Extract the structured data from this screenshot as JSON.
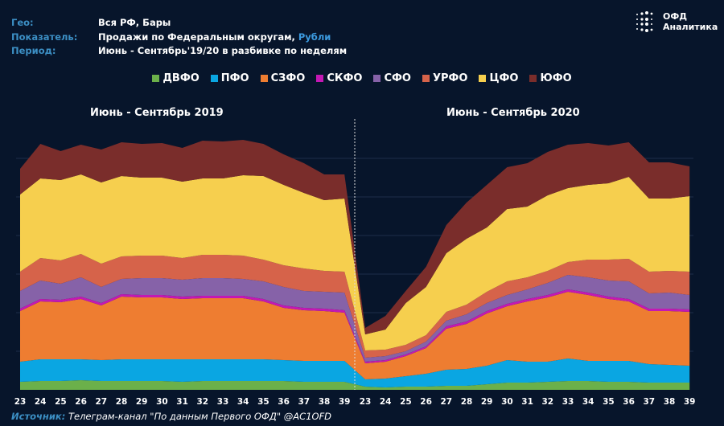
{
  "header": {
    "rows": [
      {
        "label": "Гео:",
        "value": "Вся РФ, Бары",
        "highlight": ""
      },
      {
        "label": "Показатель:",
        "value": "Продажи по Федеральным округам, ",
        "highlight": "Рубли"
      },
      {
        "label": "Период:",
        "value": "Июнь - Сентябрь'19/20 в разбивке по неделям",
        "highlight": ""
      }
    ]
  },
  "logo": {
    "line1": "ОФД",
    "line2": "Аналитика"
  },
  "source": {
    "label": "Источник:",
    "text": "Телеграм-канал \"По данным Первого ОФД\" @AC1OFD"
  },
  "chart_data": {
    "type": "area",
    "stacked": true,
    "grid": true,
    "legend_position": "top",
    "y_axis_labels_shown": false,
    "periods": [
      {
        "title": "Июнь - Сентябрь 2019",
        "weeks": [
          "23",
          "24",
          "25",
          "26",
          "27",
          "28",
          "29",
          "30",
          "31",
          "32",
          "33",
          "34",
          "35",
          "36",
          "37",
          "38",
          "39"
        ]
      },
      {
        "title": "Июнь - Сентябрь 2020",
        "weeks": [
          "23",
          "24",
          "25",
          "26",
          "27",
          "28",
          "29",
          "30",
          "31",
          "32",
          "33",
          "34",
          "35",
          "36",
          "37",
          "38",
          "39"
        ]
      }
    ],
    "series": [
      {
        "name": "ДВФО",
        "color": "#6bb04a",
        "values": [
          10,
          11,
          11,
          12,
          11,
          11,
          11,
          11,
          10,
          11,
          11,
          11,
          11,
          11,
          10,
          10,
          10,
          4,
          3,
          4,
          4,
          5,
          5,
          7,
          9,
          9,
          10,
          11,
          11,
          10,
          10,
          9,
          9,
          9
        ]
      },
      {
        "name": "ПФО",
        "color": "#0aa6e2",
        "values": [
          25,
          27,
          27,
          26,
          26,
          27,
          27,
          27,
          28,
          27,
          27,
          27,
          27,
          26,
          26,
          26,
          26,
          9,
          11,
          13,
          16,
          20,
          21,
          23,
          28,
          26,
          25,
          28,
          25,
          26,
          26,
          23,
          22,
          21
        ]
      },
      {
        "name": "СЗФО",
        "color": "#ee7d31",
        "values": [
          63,
          72,
          71,
          75,
          68,
          78,
          77,
          77,
          75,
          76,
          76,
          76,
          72,
          65,
          63,
          62,
          60,
          20,
          21,
          25,
          32,
          51,
          56,
          65,
          67,
          75,
          80,
          83,
          82,
          77,
          74,
          66,
          67,
          67
        ]
      },
      {
        "name": "СКФО",
        "color": "#c418b4",
        "values": [
          3,
          3,
          3,
          3,
          3,
          3,
          3,
          3,
          3,
          3,
          3,
          3,
          3,
          3,
          3,
          3,
          3,
          2,
          2,
          2,
          2,
          3,
          3,
          3,
          3,
          3,
          3,
          3,
          3,
          3,
          3,
          3,
          3,
          3
        ]
      },
      {
        "name": "СФО",
        "color": "#8662a8",
        "values": [
          22,
          23,
          20,
          24,
          20,
          19,
          21,
          21,
          21,
          22,
          22,
          21,
          22,
          23,
          21,
          21,
          22,
          5,
          5,
          4,
          6,
          7,
          9,
          10,
          11,
          12,
          15,
          18,
          19,
          20,
          22,
          19,
          20,
          18
        ]
      },
      {
        "name": "УРФО",
        "color": "#d6634a",
        "values": [
          24,
          28,
          29,
          29,
          29,
          28,
          28,
          28,
          27,
          29,
          29,
          29,
          27,
          27,
          28,
          26,
          26,
          9,
          8,
          8,
          8,
          11,
          12,
          14,
          17,
          15,
          15,
          16,
          22,
          26,
          28,
          27,
          27,
          29
        ]
      },
      {
        "name": "ЦФО",
        "color": "#f6cf4e",
        "values": [
          96,
          99,
          100,
          99,
          101,
          100,
          97,
          97,
          95,
          95,
          95,
          100,
          104,
          100,
          94,
          88,
          91,
          20,
          25,
          52,
          60,
          73,
          82,
          80,
          90,
          88,
          94,
          92,
          93,
          95,
          102,
          91,
          90,
          94
        ]
      },
      {
        "name": "ЮФО",
        "color": "#7a2d2b",
        "values": [
          32,
          43,
          36,
          37,
          41,
          42,
          42,
          43,
          42,
          47,
          46,
          44,
          40,
          38,
          37,
          32,
          30,
          8,
          17,
          15,
          25,
          35,
          45,
          53,
          52,
          54,
          54,
          54,
          52,
          47,
          43,
          45,
          45,
          37
        ]
      }
    ],
    "colors": {
      "background": "#07152b",
      "label": "#3c8fc4"
    }
  }
}
